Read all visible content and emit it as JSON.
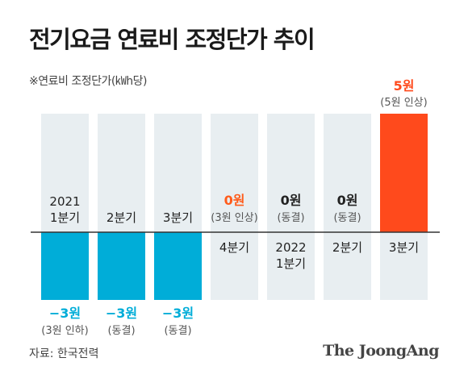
{
  "title": "전기요금 연료비 조정단가 추이",
  "subtitle": "※연료비 조정단가(㎾h당)",
  "source": "자료: 한국전력",
  "logo": "The JoongAng",
  "colors": {
    "background_panel": "#e8eef1",
    "negative": "#00add8",
    "positive": "#ff4a1c",
    "zero_label": "#ff5b1a",
    "baseline": "#333333"
  },
  "chart_data": {
    "type": "bar",
    "categories": [
      "2021\n1분기",
      "2분기",
      "3분기",
      "4분기",
      "2022\n1분기",
      "2분기",
      "3분기"
    ],
    "values": [
      -3,
      -3,
      -3,
      0,
      0,
      0,
      5
    ],
    "value_labels": [
      "−3원",
      "−3원",
      "−3원",
      "0원",
      "0원",
      "0원",
      "5원"
    ],
    "notes": [
      "(3원 인하)",
      "(동결)",
      "(동결)",
      "(3원 인상)",
      "(동결)",
      "(동결)",
      "(5원 인상)"
    ],
    "ylim": [
      -3,
      5
    ],
    "grid": false
  }
}
